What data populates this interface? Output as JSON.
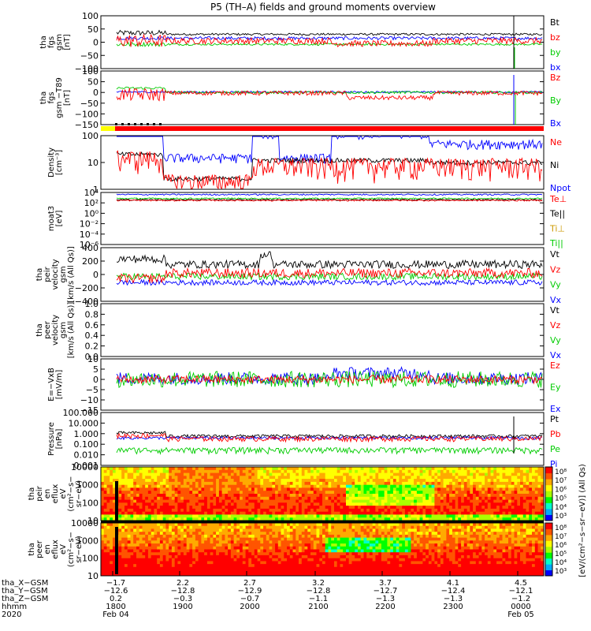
{
  "title": "P5 (TH–A) fields and ground moments overview",
  "chart_data": [
    {
      "type": "line",
      "ylabel": [
        "tha",
        "fgs",
        "gsm",
        "[nT]"
      ],
      "ylim": [
        -100,
        100
      ],
      "yticks": [
        "100",
        "50",
        "0",
        "−50",
        "−100"
      ],
      "legend": [
        {
          "label": "Bt",
          "color": "#000000"
        },
        {
          "label": "bz",
          "color": "#ff0000"
        },
        {
          "label": "by",
          "color": "#00cc00"
        },
        {
          "label": "bx",
          "color": "#0000ff"
        }
      ]
    },
    {
      "type": "line",
      "ylabel": [
        "tha",
        "fgs",
        "gsm −T89",
        "[nT]"
      ],
      "ylim": [
        -150,
        100
      ],
      "yticks": [
        "100",
        "50",
        "0",
        "−50",
        "−100",
        "−150"
      ],
      "legend": [
        {
          "label": "Bz",
          "color": "#ff0000"
        },
        {
          "label": "By",
          "color": "#00cc00"
        },
        {
          "label": "Bx",
          "color": "#0000ff"
        }
      ]
    },
    {
      "type": "line",
      "log": true,
      "ylabel": [
        "Density",
        "[cm⁻³]"
      ],
      "ylim": [
        1,
        100
      ],
      "yticks": [
        "100",
        "10",
        "1"
      ],
      "legend": [
        {
          "label": "Ne",
          "color": "#ff0000"
        },
        {
          "label": "Ni",
          "color": "#000000"
        },
        {
          "label": "Npot",
          "color": "#0000ff"
        }
      ]
    },
    {
      "type": "line",
      "log": true,
      "ylabel": [
        "moat3",
        "[eV]"
      ],
      "ylim": [
        1e-06,
        10000
      ],
      "yticks": [
        "10⁴",
        "10²",
        "10⁰",
        "10⁻²",
        "10⁻⁴",
        "10⁻⁶"
      ],
      "legend": [
        {
          "label": "Te⊥",
          "color": "#ff0000"
        },
        {
          "label": "Te||",
          "color": "#000000"
        },
        {
          "label": "Ti⊥",
          "color": "#cc9900"
        },
        {
          "label": "Ti||",
          "color": "#00cc00"
        }
      ]
    },
    {
      "type": "line",
      "ylabel": [
        "tha",
        "peir",
        "velocity",
        "gsm",
        "[km/s (All Qs)]"
      ],
      "ylim": [
        -400,
        400
      ],
      "yticks": [
        "400",
        "200",
        "0",
        "−200",
        "−400"
      ],
      "legend": [
        {
          "label": "Vt",
          "color": "#000000"
        },
        {
          "label": "Vz",
          "color": "#ff0000"
        },
        {
          "label": "Vy",
          "color": "#00cc00"
        },
        {
          "label": "Vx",
          "color": "#0000ff"
        }
      ]
    },
    {
      "type": "line",
      "ylabel": [
        "tha",
        "peer",
        "velocity",
        "gsm",
        "[km/s (All Qs)]"
      ],
      "ylim": [
        0,
        1
      ],
      "yticks": [
        "1.0",
        "0.8",
        "0.6",
        "0.4",
        "0.2",
        "0.0"
      ],
      "legend": [
        {
          "label": "Vt",
          "color": "#000000"
        },
        {
          "label": "Vz",
          "color": "#ff0000"
        },
        {
          "label": "Vy",
          "color": "#00cc00"
        },
        {
          "label": "Vx",
          "color": "#0000ff"
        }
      ]
    },
    {
      "type": "line",
      "ylabel": [
        "E=−VxB",
        "[mV/m]"
      ],
      "ylim": [
        -15,
        10
      ],
      "yticks": [
        "10",
        "5",
        "0",
        "−5",
        "−10",
        "−15"
      ],
      "legend": [
        {
          "label": "Ez",
          "color": "#ff0000"
        },
        {
          "label": "Ey",
          "color": "#00cc00"
        },
        {
          "label": "Ex",
          "color": "#0000ff"
        }
      ]
    },
    {
      "type": "line",
      "log": true,
      "ylabel": [
        "Pressure",
        "[nPa]"
      ],
      "ylim": [
        0.001,
        100
      ],
      "yticks": [
        "100.000",
        "10.000",
        "1.000",
        "0.100",
        "0.010",
        "0.001"
      ],
      "legend": [
        {
          "label": "Pt",
          "color": "#000000"
        },
        {
          "label": "Pb",
          "color": "#ff0000"
        },
        {
          "label": "Pe",
          "color": "#00cc00"
        },
        {
          "label": "Pi",
          "color": "#0000ff"
        }
      ]
    },
    {
      "type": "heatmap",
      "ylabel": [
        "tha",
        "peir",
        "en",
        "eflux",
        "eV",
        "(cm²−s−",
        "sr−eV)"
      ],
      "yticks": [
        "10000",
        "1000",
        "100",
        "10"
      ]
    },
    {
      "type": "heatmap",
      "ylabel": [
        "tha",
        "peer",
        "en",
        "eflux",
        "eV",
        "(cm²−s−",
        "sr−eV)"
      ],
      "yticks": [
        "10000",
        "1000",
        "100",
        "10"
      ]
    }
  ],
  "colorbar_1": {
    "ticks": [
      "10⁸",
      "10⁷",
      "10⁶",
      "10⁵",
      "10⁴",
      "10³"
    ],
    "label": "[eV/(cm²−s−sr−eV)] (All Qs)"
  },
  "colorbar_2": {
    "ticks": [
      "10⁸",
      "10⁷",
      "10⁶",
      "10⁵",
      "10⁴",
      "10³"
    ]
  },
  "x_axis": {
    "row_labels": [
      "tha_X−GSM",
      "tha_Y−GSM",
      "tha_Z−GSM",
      "hhmm",
      "2020"
    ],
    "ticks": [
      {
        "x": "−1.7",
        "y": "−12.6",
        "z": "0.2",
        "time": "1800",
        "date": "Feb 04"
      },
      {
        "x": "2.2",
        "y": "−12.8",
        "z": "−0.3",
        "time": "1900",
        "date": ""
      },
      {
        "x": "2.7",
        "y": "−12.9",
        "z": "−0.7",
        "time": "2000",
        "date": ""
      },
      {
        "x": "3.2",
        "y": "−12.8",
        "z": "−1.1",
        "time": "2100",
        "date": ""
      },
      {
        "x": "3.7",
        "y": "−12.7",
        "z": "−1.3",
        "time": "2200",
        "date": ""
      },
      {
        "x": "4.1",
        "y": "−12.4",
        "z": "−1.3",
        "time": "2300",
        "date": ""
      },
      {
        "x": "4.5",
        "y": "−12.1",
        "z": "−1.2",
        "time": "0000",
        "date": "Feb 05"
      }
    ]
  }
}
